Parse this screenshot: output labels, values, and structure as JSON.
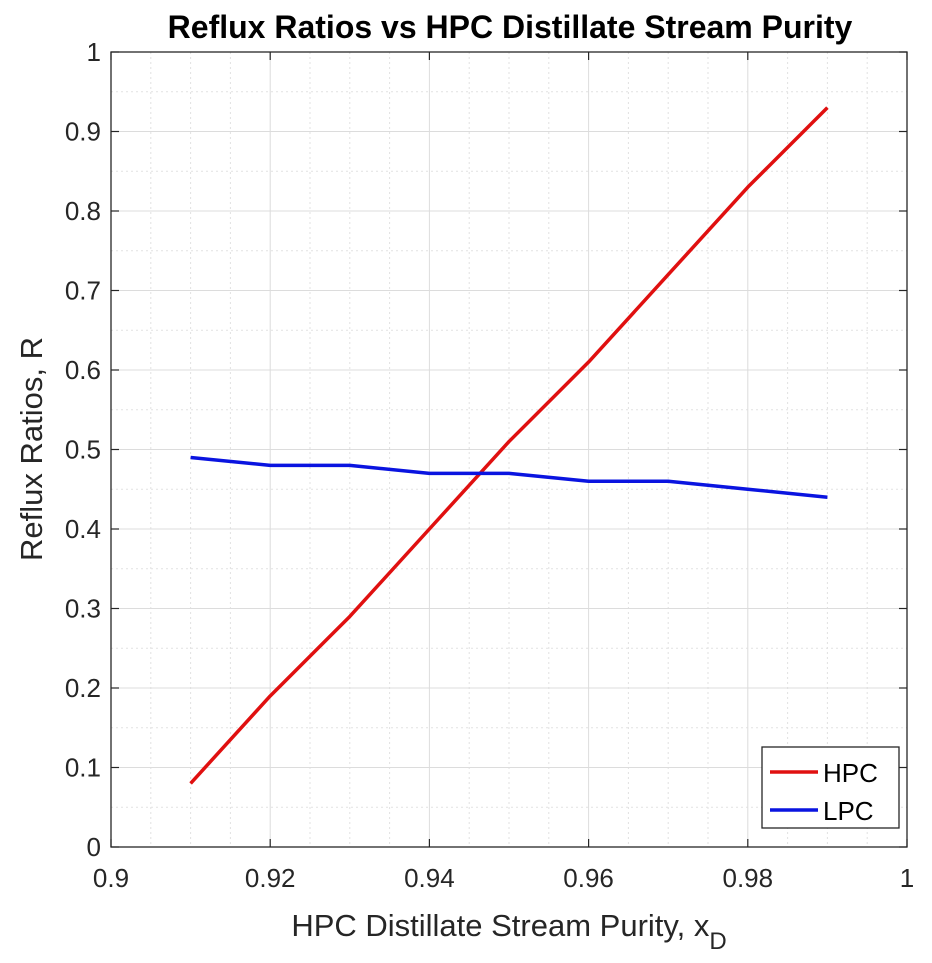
{
  "chart_data": {
    "type": "line",
    "title": "Reflux Ratios vs HPC Distillate Stream Purity",
    "xlabel": "HPC Distillate Stream Purity, x",
    "xlabel_subscript": "D",
    "ylabel": "Reflux Ratios, R",
    "xlim": [
      0.9,
      1.0
    ],
    "ylim": [
      0,
      1
    ],
    "xticks": [
      "0.9",
      "0.92",
      "0.94",
      "0.96",
      "0.98",
      "1"
    ],
    "yticks": [
      "0",
      "0.1",
      "0.2",
      "0.3",
      "0.4",
      "0.5",
      "0.6",
      "0.7",
      "0.8",
      "0.9",
      "1"
    ],
    "grid": true,
    "minor_grid": true,
    "legend_position": "bottom-right",
    "x": [
      0.91,
      0.92,
      0.93,
      0.94,
      0.95,
      0.96,
      0.97,
      0.98,
      0.99
    ],
    "series": [
      {
        "name": "HPC",
        "color": "#e01010",
        "values": [
          0.08,
          0.19,
          0.29,
          0.4,
          0.51,
          0.61,
          0.72,
          0.83,
          0.93
        ]
      },
      {
        "name": "LPC",
        "color": "#0a14e0",
        "values": [
          0.49,
          0.48,
          0.48,
          0.47,
          0.47,
          0.46,
          0.46,
          0.45,
          0.44
        ]
      }
    ]
  }
}
